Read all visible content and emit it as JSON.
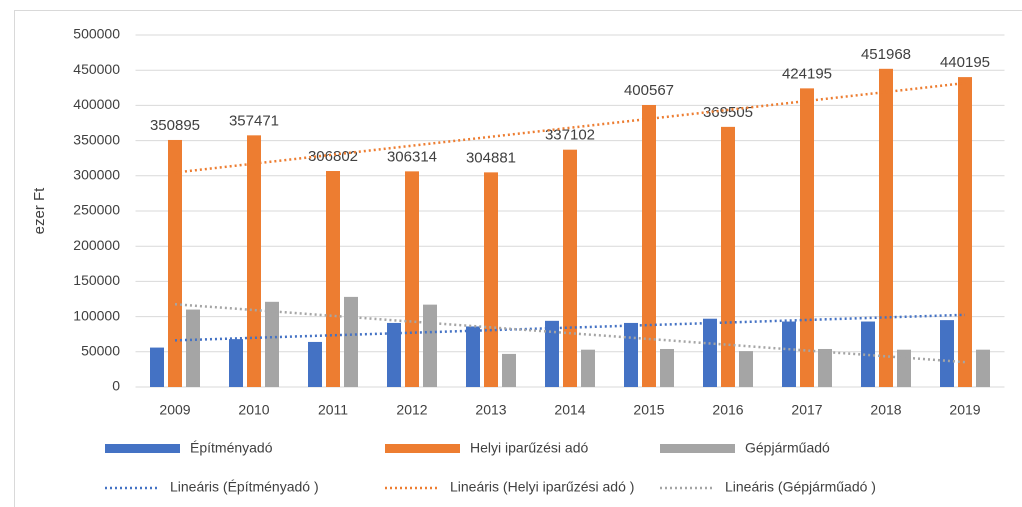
{
  "chart_data": {
    "type": "bar",
    "y_label": "ezer Ft",
    "categories": [
      "2009",
      "2010",
      "2011",
      "2012",
      "2013",
      "2014",
      "2015",
      "2016",
      "2017",
      "2018",
      "2019"
    ],
    "series": [
      {
        "name": "Építményadó",
        "color": "#4472c4",
        "values": [
          56000,
          68000,
          64000,
          91000,
          86000,
          94000,
          91000,
          97000,
          93000,
          93000,
          95000
        ]
      },
      {
        "name": "Helyi iparűzési adó",
        "color": "#ed7d31",
        "show_values": true,
        "values": [
          350895,
          357471,
          306802,
          306314,
          304881,
          337102,
          400567,
          369505,
          424195,
          451968,
          440195
        ]
      },
      {
        "name": "Gépjárműadó",
        "color": "#a5a5a5",
        "values": [
          110000,
          121000,
          128000,
          117000,
          47000,
          53000,
          54000,
          51000,
          54000,
          53000,
          53000
        ]
      }
    ],
    "trendlines": [
      {
        "name": "Lineáris (Építményadó )",
        "series": 0,
        "color": "#4472c4"
      },
      {
        "name": "Lineáris (Helyi iparűzési adó )",
        "series": 1,
        "color": "#ed7d31"
      },
      {
        "name": "Lineáris (Gépjárműadó )",
        "series": 2,
        "color": "#a5a5a5"
      }
    ],
    "ylim": [
      0,
      500000
    ],
    "yticks": [
      0,
      50000,
      100000,
      150000,
      200000,
      250000,
      300000,
      350000,
      400000,
      450000,
      500000
    ],
    "grid": true
  }
}
